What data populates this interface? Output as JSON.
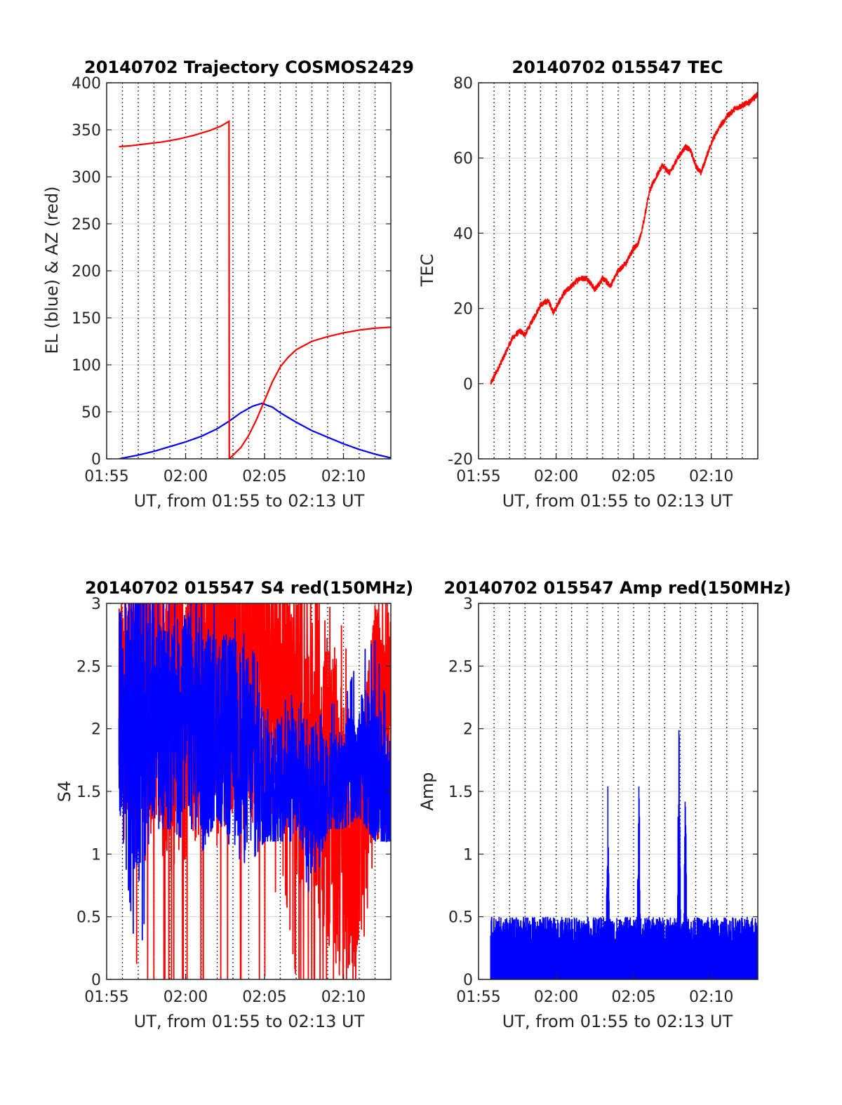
{
  "colors": {
    "el": "#0000ff",
    "az": "#ff0000",
    "grid_v": "#000000",
    "grid_h": "#d9d9d9",
    "axis": "#262626"
  },
  "chart_data": [
    {
      "type": "line",
      "title": "20140702 Trajectory COSMOS2429",
      "xlabel": "UT, from 01:55 to 02:13 UT",
      "ylabel": "EL (blue) & AZ (red)",
      "xlim_minutes_after_0155": [
        0,
        18
      ],
      "xtick_labels": [
        "01:55",
        "02:00",
        "02:05",
        "02:10"
      ],
      "ylim": [
        0,
        400
      ],
      "yticks": [
        0,
        50,
        100,
        150,
        200,
        250,
        300,
        350,
        400
      ],
      "ytick_labels": [
        "0",
        "50",
        "100",
        "150",
        "200",
        "250",
        "300",
        "350",
        "400"
      ],
      "grid": "vertical dotted every minute, horizontal light",
      "series": [
        {
          "color": "#0000ff",
          "x": [
            "01:55:47",
            "01:57:00",
            "01:58:00",
            "01:59:00",
            "02:00:00",
            "02:01:00",
            "02:02:00",
            "02:02:45",
            "02:03:30",
            "02:04:15",
            "02:04:50",
            "02:05:30",
            "02:06:00",
            "02:07:00",
            "02:08:00",
            "02:09:00",
            "02:10:00",
            "02:11:00",
            "02:12:00",
            "02:13:00"
          ],
          "y": [
            0,
            4,
            8,
            13,
            18,
            24,
            32,
            40,
            49,
            56,
            59,
            55,
            49,
            39,
            30,
            23,
            16,
            10,
            5,
            1
          ]
        },
        {
          "color": "#ff0000",
          "x": [
            "01:55:47",
            "01:56:30",
            "01:57:30",
            "01:58:30",
            "01:59:30",
            "02:00:30",
            "02:01:30",
            "02:02:15",
            "02:02:45",
            "02:02:46",
            "02:03:30",
            "02:04:00",
            "02:04:30",
            "02:05:00",
            "02:05:30",
            "02:06:00",
            "02:06:30",
            "02:07:00",
            "02:08:00",
            "02:09:00",
            "02:10:00",
            "02:11:00",
            "02:12:00",
            "02:13:00"
          ],
          "y": [
            332,
            333,
            335,
            337,
            340,
            344,
            349,
            354,
            359,
            0,
            12,
            25,
            42,
            62,
            82,
            98,
            108,
            116,
            125,
            130,
            134,
            137,
            139,
            140
          ]
        }
      ]
    },
    {
      "type": "line",
      "title": "20140702 015547 TEC",
      "xlabel": "UT, from 01:55 to 02:13 UT",
      "ylabel": "TEC",
      "xlim_minutes_after_0155": [
        0,
        18
      ],
      "xtick_labels": [
        "01:55",
        "02:00",
        "02:05",
        "02:10"
      ],
      "ylim": [
        -20,
        80
      ],
      "yticks": [
        -20,
        0,
        20,
        40,
        60,
        80
      ],
      "ytick_labels": [
        "-20",
        "0",
        "20",
        "40",
        "60",
        "80"
      ],
      "grid": "vertical dotted every minute, horizontal light",
      "series": [
        {
          "color": "#ff0000",
          "x": [
            "01:55:47",
            "01:56:30",
            "01:57:10",
            "01:57:40",
            "01:58:00",
            "01:58:30",
            "01:59:00",
            "01:59:30",
            "01:59:50",
            "02:00:30",
            "02:01:00",
            "02:01:30",
            "02:02:00",
            "02:02:30",
            "02:03:00",
            "02:03:30",
            "02:04:00",
            "02:04:30",
            "02:05:00",
            "02:05:15",
            "02:05:30",
            "02:06:00",
            "02:06:20",
            "02:06:50",
            "02:07:20",
            "02:07:50",
            "02:08:20",
            "02:08:40",
            "02:09:00",
            "02:09:20",
            "02:09:40",
            "02:10:00",
            "02:10:30",
            "02:11:00",
            "02:11:30",
            "02:12:00",
            "02:12:30",
            "02:13:00"
          ],
          "y": [
            0,
            6,
            12,
            14,
            13,
            17,
            21,
            22,
            19,
            24,
            26,
            28,
            28,
            25,
            28,
            26,
            30,
            32,
            36,
            37,
            40,
            51,
            54,
            58,
            56,
            60,
            63,
            62,
            58,
            56,
            60,
            64,
            68,
            71,
            73,
            74,
            75,
            77
          ]
        }
      ]
    },
    {
      "type": "line",
      "title": "20140702 015547 S4 red(150MHz)",
      "xlabel": "UT, from 01:55 to 02:13 UT",
      "ylabel": "S4",
      "xlim_minutes_after_0155": [
        0,
        18
      ],
      "xtick_labels": [
        "01:55",
        "02:00",
        "02:05",
        "02:10"
      ],
      "ylim": [
        0,
        3
      ],
      "yticks": [
        0,
        0.5,
        1,
        1.5,
        2,
        2.5,
        3
      ],
      "ytick_labels": [
        "0",
        "0.5",
        "1",
        "1.5",
        "2",
        "2.5",
        "3"
      ],
      "grid": "vertical dotted every minute, horizontal light",
      "note_values": "dense noisy traces; representative envelope",
      "series": [
        {
          "color": "#ff0000",
          "x": [
            "01:55:47",
            "01:57:00",
            "01:58:00",
            "01:59:00",
            "02:00:00",
            "02:01:00",
            "02:02:00",
            "02:03:00",
            "02:04:00",
            "02:05:00",
            "02:06:00",
            "02:07:00",
            "02:08:00",
            "02:09:00",
            "02:10:00",
            "02:11:00",
            "02:12:00",
            "02:13:00"
          ],
          "y_mean": [
            2.3,
            2.2,
            2.4,
            2.2,
            2.3,
            2.5,
            2.4,
            2.6,
            2.5,
            2.6,
            2.3,
            2.1,
            2.0,
            1.6,
            1.1,
            1.0,
            2.2,
            2.4
          ],
          "y_min": [
            1.5,
            0.0,
            0.0,
            0.0,
            0.0,
            0.0,
            0.0,
            0.0,
            0.0,
            0.0,
            1.0,
            0.0,
            0.0,
            0.0,
            0.0,
            0.0,
            1.1,
            1.2
          ],
          "y_max": [
            3.0,
            3.0,
            3.0,
            3.0,
            3.0,
            3.0,
            3.0,
            3.0,
            3.0,
            3.0,
            3.0,
            3.0,
            3.0,
            3.0,
            2.8,
            1.8,
            3.0,
            3.0
          ]
        },
        {
          "color": "#0000ff",
          "x": [
            "01:55:47",
            "01:57:00",
            "01:58:00",
            "01:59:00",
            "02:00:00",
            "02:01:00",
            "02:02:00",
            "02:03:00",
            "02:04:00",
            "02:05:00",
            "02:06:00",
            "02:07:00",
            "02:08:00",
            "02:09:00",
            "02:10:00",
            "02:11:00",
            "02:12:00",
            "02:13:00"
          ],
          "y_mean": [
            2.2,
            2.0,
            2.1,
            2.0,
            2.1,
            2.0,
            2.0,
            1.9,
            1.8,
            1.6,
            1.6,
            1.7,
            1.4,
            1.5,
            1.6,
            1.7,
            1.6,
            1.5
          ],
          "y_min": [
            1.4,
            0.0,
            1.2,
            1.2,
            1.1,
            1.0,
            1.3,
            1.0,
            0.9,
            1.1,
            1.1,
            1.1,
            0.6,
            1.2,
            1.2,
            1.3,
            1.1,
            1.1
          ],
          "y_max": [
            3.0,
            3.0,
            3.0,
            3.0,
            3.0,
            3.0,
            3.0,
            2.9,
            2.7,
            2.4,
            2.2,
            2.3,
            2.0,
            2.2,
            2.2,
            2.6,
            2.7,
            2.0
          ]
        }
      ]
    },
    {
      "type": "line",
      "title": "20140702 015547 Amp red(150MHz)",
      "xlabel": "UT, from 01:55 to 02:13 UT",
      "ylabel": "Amp",
      "xlim_minutes_after_0155": [
        0,
        18
      ],
      "xtick_labels": [
        "01:55",
        "02:00",
        "02:05",
        "02:10"
      ],
      "ylim": [
        0,
        3
      ],
      "yticks": [
        0,
        0.5,
        1,
        1.5,
        2,
        2.5,
        3
      ],
      "ytick_labels": [
        "0",
        "0.5",
        "1",
        "1.5",
        "2",
        "2.5",
        "3"
      ],
      "grid": "vertical dotted every minute, horizontal light",
      "note_values": "dense noisy amplitude; baseline ~0.3-0.5 with spikes",
      "series": [
        {
          "color": "#0000ff",
          "x": [
            "01:55:47",
            "01:57:00",
            "01:58:00",
            "01:59:00",
            "02:00:00",
            "02:01:00",
            "02:02:00",
            "02:03:00",
            "02:03:20",
            "02:04:00",
            "02:05:00",
            "02:05:20",
            "02:06:00",
            "02:07:00",
            "02:07:50",
            "02:08:20",
            "02:09:00",
            "02:10:00",
            "02:11:00",
            "02:12:00",
            "02:13:00"
          ],
          "y_max": [
            0.55,
            0.55,
            0.55,
            0.6,
            0.55,
            0.55,
            0.5,
            0.55,
            1.65,
            0.6,
            0.6,
            1.93,
            0.6,
            0.55,
            2.33,
            1.75,
            0.55,
            0.55,
            0.6,
            0.62,
            0.7
          ]
        }
      ]
    }
  ]
}
